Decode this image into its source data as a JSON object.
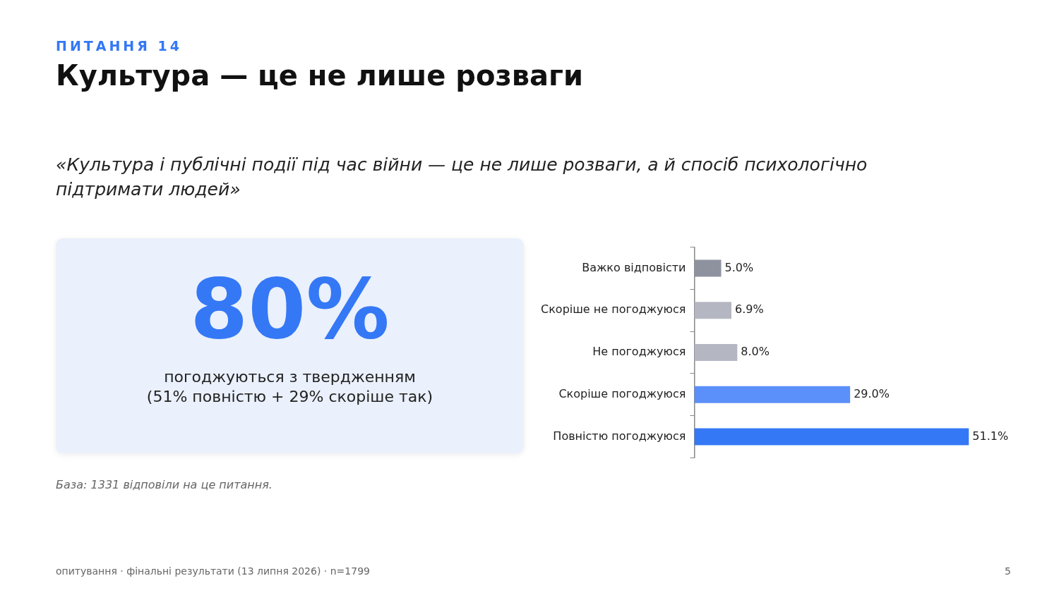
{
  "chart_data": {
    "type": "bar",
    "orientation": "horizontal",
    "title": "Культура — це не лише розваги",
    "subtitle": "«Культура і публічні події під час війни — це не лише розваги, а й спосіб психологічно підтримати людей»",
    "categories": [
      "Важко відповісти",
      "Скоріше не погоджуюся",
      "Не погоджуюся",
      "Скоріше погоджуюся",
      "Повністю погоджуюся"
    ],
    "values": [
      5.0,
      6.9,
      8.0,
      29.0,
      51.1
    ],
    "colors": [
      "#8e929f",
      "#b4b7c2",
      "#b4b7c2",
      "#5b8ff9",
      "#3478f6"
    ],
    "value_labels": [
      "5.0%",
      "6.9%",
      "8.0%",
      "29.0%",
      "51.1%"
    ],
    "grid": false,
    "legend": false,
    "tick_labels": "y",
    "annotations": [
      "ПИТАННЯ 14",
      "80%",
      "погоджуються з твердженням",
      "(51% повністю + 29% скоріше так)",
      "База: 1331 відповіли на це питання.",
      "опитування · фінальні результати (13 липня 2026) · n=1799",
      "5"
    ]
  }
}
